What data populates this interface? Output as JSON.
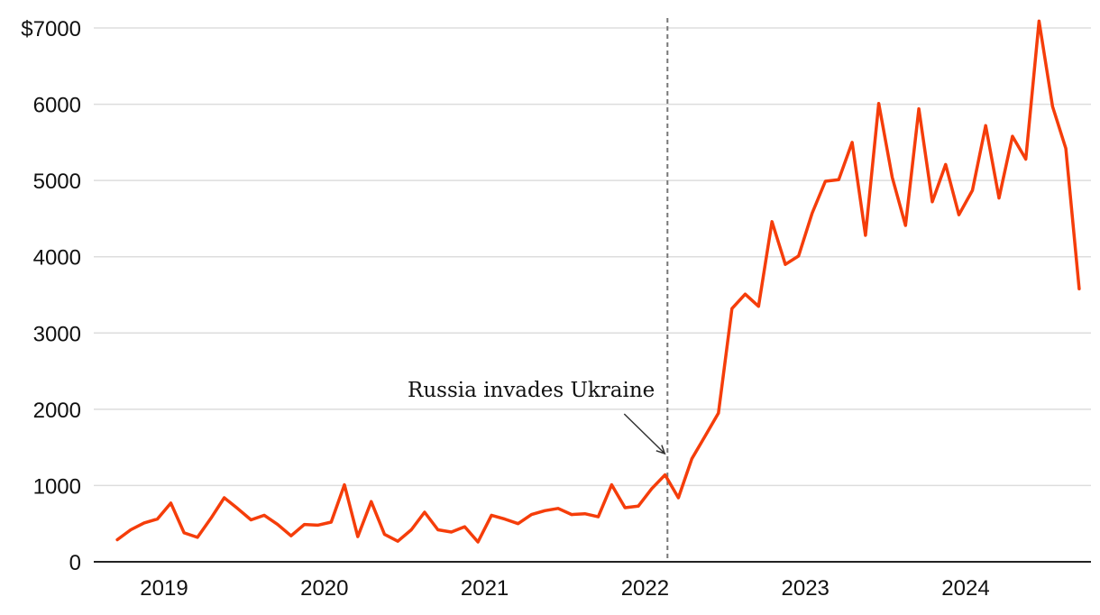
{
  "chart_data": {
    "type": "line",
    "title": "",
    "xlabel": "",
    "ylabel": "",
    "ylim": [
      0,
      7000
    ],
    "y_ticks": [
      0,
      1000,
      2000,
      3000,
      4000,
      5000,
      6000,
      7000
    ],
    "y_tick_labels": [
      "0",
      "1000",
      "2000",
      "3000",
      "4000",
      "5000",
      "6000",
      "$7000"
    ],
    "x_ticks": [
      2019,
      2020,
      2021,
      2022,
      2023,
      2024
    ],
    "x_tick_labels": [
      "2019",
      "2020",
      "2021",
      "2022",
      "2023",
      "2024"
    ],
    "xlim": [
      2018.6,
      2024.95
    ],
    "grid": true,
    "legend": "none",
    "colors": {
      "line": "#f53d0a",
      "event_line": "#777777"
    },
    "annotation": {
      "text": "Russia invades Ukraine",
      "x": 2022.14
    },
    "series": [
      {
        "x": [
          2018.708,
          2018.792,
          2018.875,
          2018.958,
          2019.042,
          2019.125,
          2019.208,
          2019.292,
          2019.375,
          2019.458,
          2019.542,
          2019.625,
          2019.708,
          2019.792,
          2019.875,
          2019.958,
          2020.042,
          2020.125,
          2020.208,
          2020.292,
          2020.375,
          2020.458,
          2020.542,
          2020.625,
          2020.708,
          2020.792,
          2020.875,
          2020.958,
          2021.042,
          2021.125,
          2021.208,
          2021.292,
          2021.375,
          2021.458,
          2021.542,
          2021.625,
          2021.708,
          2021.792,
          2021.875,
          2021.958,
          2022.042,
          2022.125,
          2022.208,
          2022.292,
          2022.375,
          2022.458,
          2022.542,
          2022.625,
          2022.708,
          2022.792,
          2022.875,
          2022.958,
          2023.042,
          2023.125,
          2023.208,
          2023.292,
          2023.375,
          2023.458,
          2023.542,
          2023.625,
          2023.708,
          2023.792,
          2023.875,
          2023.958,
          2024.042,
          2024.125,
          2024.208,
          2024.292,
          2024.375,
          2024.458,
          2024.542,
          2024.625,
          2024.708
        ],
        "values": [
          290,
          420,
          510,
          560,
          770,
          380,
          320,
          570,
          840,
          700,
          550,
          610,
          490,
          340,
          490,
          480,
          520,
          1010,
          330,
          790,
          360,
          270,
          420,
          650,
          420,
          390,
          460,
          260,
          610,
          560,
          500,
          620,
          670,
          700,
          620,
          630,
          590,
          1010,
          710,
          730,
          960,
          1140,
          840,
          1350,
          1650,
          1950,
          3320,
          3510,
          3350,
          4460,
          3900,
          4010,
          4570,
          4990,
          5010,
          5500,
          4280,
          6010,
          5040,
          4410,
          5940,
          4720,
          5210,
          4550,
          4870,
          5720,
          4770,
          5580,
          5280,
          7090,
          5970,
          5420,
          3580
        ]
      }
    ]
  }
}
